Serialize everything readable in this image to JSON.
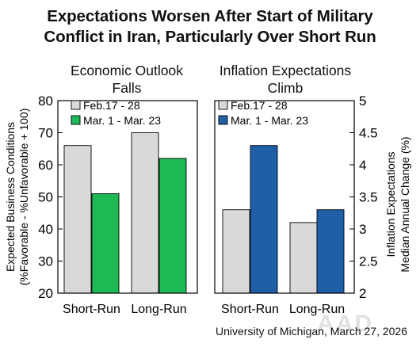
{
  "title_lines": [
    "Expectations Worsen After Start of Military",
    "Conflict in Iran, Particularly Over Short Run"
  ],
  "source": "University of Michigan, March 27, 2026",
  "watermark": "AAD",
  "colors": {
    "feb": "#d9d9d9",
    "mar_left": "#1db954",
    "mar_right": "#1f5fa8",
    "frame": "#000000"
  },
  "chart_data": [
    {
      "type": "bar",
      "title_lines": [
        "Economic Outlook",
        "Falls"
      ],
      "categories": [
        "Short-Run",
        "Long-Run"
      ],
      "series": [
        {
          "name": "Feb.17 - 28",
          "values": [
            66,
            70
          ]
        },
        {
          "name": "Mar. 1 - Mar. 23",
          "values": [
            51,
            62
          ]
        }
      ],
      "ylabel_lines": [
        "Expected Business Conditions",
        "(%Favorable - %Unfavorable + 100)"
      ],
      "ylim": [
        20,
        80
      ],
      "yticks": [
        "20",
        "30",
        "40",
        "50",
        "60",
        "70",
        "80"
      ],
      "ytick_values": [
        20,
        30,
        40,
        50,
        60,
        70,
        80
      ],
      "axis_side": "left",
      "legend": "top-left",
      "grid": false
    },
    {
      "type": "bar",
      "title_lines": [
        "Inflation Expectations",
        "Climb"
      ],
      "categories": [
        "Short-Run",
        "Long-Run"
      ],
      "series": [
        {
          "name": "Feb.17 - 28",
          "values": [
            3.3,
            3.1
          ]
        },
        {
          "name": "Mar. 1 - Mar. 23",
          "values": [
            4.3,
            3.3
          ]
        }
      ],
      "ylabel_lines": [
        "Inflation Expectations",
        "Median Annual Change (%)"
      ],
      "ylim": [
        2,
        5
      ],
      "yticks": [
        "2",
        "2.5",
        "3",
        "3.5",
        "4",
        "4.5",
        "5"
      ],
      "ytick_values": [
        2,
        2.5,
        3,
        3.5,
        4,
        4.5,
        5
      ],
      "axis_side": "right",
      "legend": "top-left",
      "grid": false
    }
  ]
}
